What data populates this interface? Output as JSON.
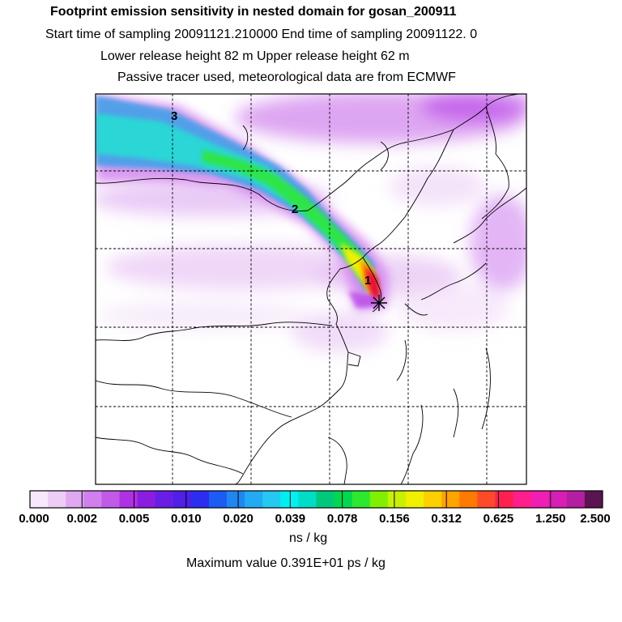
{
  "header": {
    "title": "Footprint emission sensitivity in nested domain for gosan_200911",
    "sampling": "Start time of sampling 20091121.210000      End time of sampling 20091122.      0",
    "release": "Lower release height   82 m          Upper release height   62 m",
    "note": "Passive tracer used, meteorological data are from ECMWF"
  },
  "map": {
    "point_labels": [
      "1",
      "2",
      "3"
    ],
    "receptor": "gosan",
    "colors": {
      "plume_cyan": "#2bd6d6",
      "plume_blue": "#3aa0e8",
      "plume_red": "#e8103c",
      "haze_magenta": "#b43ce6"
    }
  },
  "colorbar": {
    "colors": [
      "#f7e8fb",
      "#eccdf6",
      "#dfa8f0",
      "#d080ec",
      "#c25ae8",
      "#b030e4",
      "#8a1ee0",
      "#6a1ee4",
      "#4e20e8",
      "#2b2ef0",
      "#1d5cf2",
      "#1f86f2",
      "#22aaf2",
      "#25c8f0",
      "#00f0f0",
      "#00dcc8",
      "#00c87a",
      "#00d850",
      "#2ee82e",
      "#80f000",
      "#c8f000",
      "#f0f000",
      "#ffd000",
      "#ffa400",
      "#ff7a00",
      "#ff4a2a",
      "#ff2050",
      "#ff1e8c",
      "#f01eb4",
      "#d81eb4",
      "#b41ea0",
      "#5a1450"
    ],
    "ticks": [
      "0.000",
      "0.002",
      "0.005",
      "0.010",
      "0.020",
      "0.039",
      "0.078",
      "0.156",
      "0.312",
      "0.625",
      "1.250",
      "2.500"
    ],
    "units": "ns / kg",
    "max_value": "Maximum value  0.391E+01 ps / kg"
  }
}
